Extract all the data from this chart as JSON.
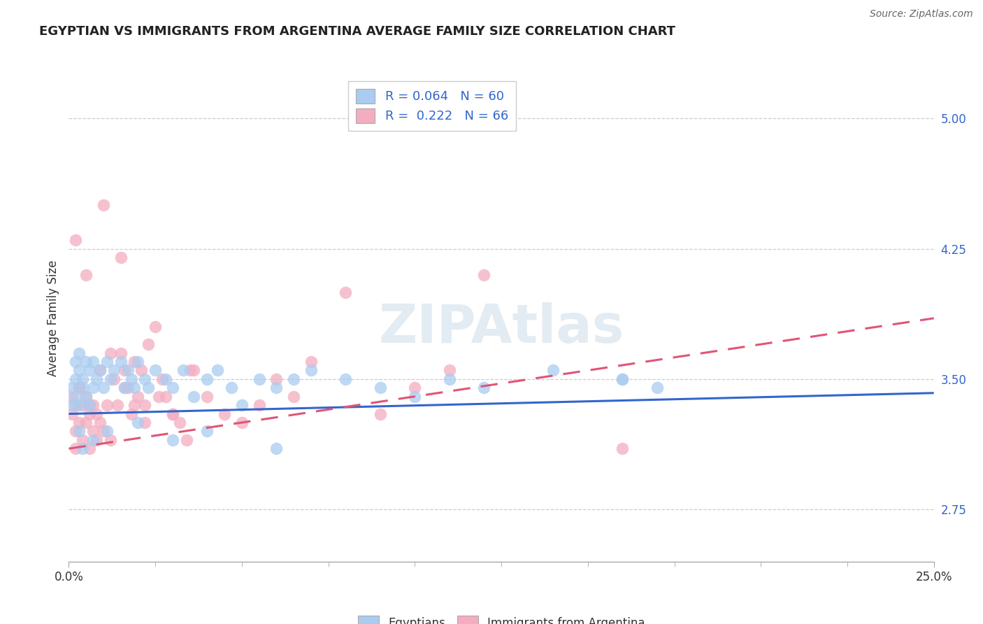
{
  "title": "EGYPTIAN VS IMMIGRANTS FROM ARGENTINA AVERAGE FAMILY SIZE CORRELATION CHART",
  "source": "Source: ZipAtlas.com",
  "ylabel": "Average Family Size",
  "xlim": [
    0.0,
    0.25
  ],
  "ylim": [
    2.45,
    5.25
  ],
  "yticks": [
    2.75,
    3.5,
    4.25,
    5.0
  ],
  "xticks": [
    0.0,
    0.25
  ],
  "xticklabels": [
    "0.0%",
    "25.0%"
  ],
  "blue_R": 0.064,
  "blue_N": 60,
  "pink_R": 0.222,
  "pink_N": 66,
  "blue_color": "#aaccf0",
  "pink_color": "#f4adc0",
  "blue_line_color": "#3366cc",
  "pink_line_color": "#e05575",
  "legend_label_blue": "Egyptians",
  "legend_label_pink": "Immigrants from Argentina",
  "watermark": "ZIPAtlas",
  "background_color": "#ffffff",
  "grid_color": "#cccccc",
  "blue_scatter_x": [
    0.001,
    0.001,
    0.002,
    0.002,
    0.002,
    0.003,
    0.003,
    0.003,
    0.004,
    0.004,
    0.005,
    0.005,
    0.006,
    0.006,
    0.007,
    0.007,
    0.008,
    0.009,
    0.01,
    0.011,
    0.012,
    0.013,
    0.015,
    0.016,
    0.017,
    0.018,
    0.019,
    0.02,
    0.022,
    0.023,
    0.025,
    0.028,
    0.03,
    0.033,
    0.036,
    0.04,
    0.043,
    0.047,
    0.05,
    0.055,
    0.06,
    0.065,
    0.07,
    0.08,
    0.09,
    0.1,
    0.11,
    0.12,
    0.14,
    0.16,
    0.003,
    0.004,
    0.007,
    0.011,
    0.02,
    0.03,
    0.04,
    0.06,
    0.16,
    0.17
  ],
  "blue_scatter_y": [
    3.35,
    3.45,
    3.5,
    3.6,
    3.4,
    3.55,
    3.65,
    3.35,
    3.5,
    3.45,
    3.6,
    3.4,
    3.55,
    3.35,
    3.45,
    3.6,
    3.5,
    3.55,
    3.45,
    3.6,
    3.5,
    3.55,
    3.6,
    3.45,
    3.55,
    3.5,
    3.45,
    3.6,
    3.5,
    3.45,
    3.55,
    3.5,
    3.45,
    3.55,
    3.4,
    3.5,
    3.55,
    3.45,
    3.35,
    3.5,
    3.45,
    3.5,
    3.55,
    3.5,
    3.45,
    3.4,
    3.5,
    3.45,
    3.55,
    3.5,
    3.2,
    3.1,
    3.15,
    3.2,
    3.25,
    3.15,
    3.2,
    3.1,
    3.5,
    3.45
  ],
  "pink_scatter_x": [
    0.001,
    0.001,
    0.002,
    0.002,
    0.002,
    0.003,
    0.003,
    0.004,
    0.004,
    0.005,
    0.005,
    0.006,
    0.006,
    0.007,
    0.007,
    0.008,
    0.008,
    0.009,
    0.01,
    0.011,
    0.012,
    0.013,
    0.014,
    0.015,
    0.016,
    0.017,
    0.018,
    0.019,
    0.02,
    0.021,
    0.022,
    0.023,
    0.025,
    0.027,
    0.028,
    0.03,
    0.032,
    0.034,
    0.036,
    0.04,
    0.045,
    0.05,
    0.055,
    0.06,
    0.065,
    0.07,
    0.08,
    0.09,
    0.1,
    0.11,
    0.003,
    0.006,
    0.009,
    0.012,
    0.016,
    0.019,
    0.022,
    0.026,
    0.03,
    0.035,
    0.002,
    0.005,
    0.01,
    0.015,
    0.12,
    0.16
  ],
  "pink_scatter_y": [
    3.4,
    3.3,
    3.2,
    3.1,
    3.35,
    3.45,
    3.25,
    3.35,
    3.15,
    3.4,
    3.25,
    3.1,
    3.3,
    3.2,
    3.35,
    3.15,
    3.3,
    3.25,
    3.2,
    3.35,
    3.15,
    3.5,
    3.35,
    3.65,
    3.55,
    3.45,
    3.3,
    3.6,
    3.4,
    3.55,
    3.35,
    3.7,
    3.8,
    3.5,
    3.4,
    3.3,
    3.25,
    3.15,
    3.55,
    3.4,
    3.3,
    3.25,
    3.35,
    3.5,
    3.4,
    3.6,
    4.0,
    3.3,
    3.45,
    3.55,
    3.45,
    3.35,
    3.55,
    3.65,
    3.45,
    3.35,
    3.25,
    3.4,
    3.3,
    3.55,
    4.3,
    4.1,
    4.5,
    4.2,
    4.1,
    3.1
  ],
  "blue_trendline_x": [
    0.0,
    0.25
  ],
  "blue_trendline_y": [
    3.3,
    3.42
  ],
  "pink_trendline_x": [
    0.0,
    0.25
  ],
  "pink_trendline_y": [
    3.1,
    3.85
  ]
}
